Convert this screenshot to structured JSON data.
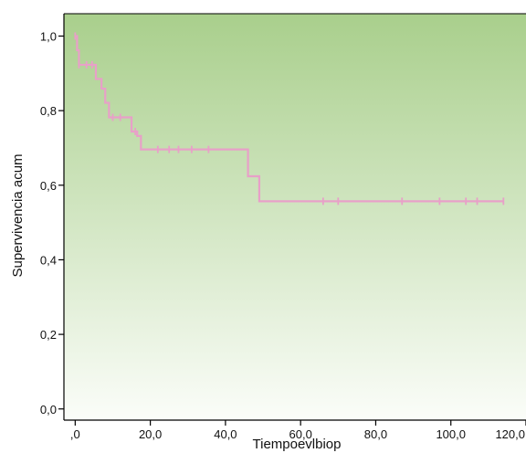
{
  "chart_data": {
    "type": "line",
    "title": "",
    "xlabel": "Tiempoevlbiop",
    "ylabel": "Supervivencia acum",
    "xlim": [
      -3,
      120
    ],
    "ylim": [
      -0.03,
      1.06
    ],
    "x_ticks": [
      0,
      20,
      40,
      60,
      80,
      100,
      120
    ],
    "x_tick_labels": [
      ",0",
      "20,0",
      "40,0",
      "60,0",
      "80,0",
      "100,0",
      "120,0"
    ],
    "y_ticks": [
      0,
      0.2,
      0.4,
      0.6,
      0.8,
      1.0
    ],
    "y_tick_labels": [
      "0,0",
      "0,2",
      "0,4",
      "0,6",
      "0,8",
      "1,0"
    ],
    "grid": false,
    "background": "green gradient (top) to white (bottom)",
    "colors": {
      "line": "#e8a0c8",
      "gradient_top": "#a9cf8c",
      "gradient_bottom": "#fbfdf9",
      "axis": "#000000"
    },
    "series": [
      {
        "step": true,
        "x": [
          0,
          0.5,
          1,
          5.5,
          7,
          8,
          9,
          14.5,
          15,
          16.5,
          17.5,
          46,
          49,
          114
        ],
        "y": [
          1.0,
          0.962,
          0.923,
          0.885,
          0.859,
          0.821,
          0.782,
          0.782,
          0.744,
          0.732,
          0.696,
          0.624,
          0.557,
          0.557
        ]
      }
    ],
    "censored": {
      "x": [
        0,
        1,
        3,
        4.5,
        10,
        12,
        16,
        22,
        25,
        27.5,
        31,
        35.5,
        66,
        70,
        87,
        97,
        104,
        107,
        114
      ],
      "y": [
        1.0,
        0.923,
        0.923,
        0.923,
        0.782,
        0.782,
        0.744,
        0.696,
        0.696,
        0.696,
        0.696,
        0.696,
        0.557,
        0.557,
        0.557,
        0.557,
        0.557,
        0.557,
        0.557
      ]
    }
  }
}
